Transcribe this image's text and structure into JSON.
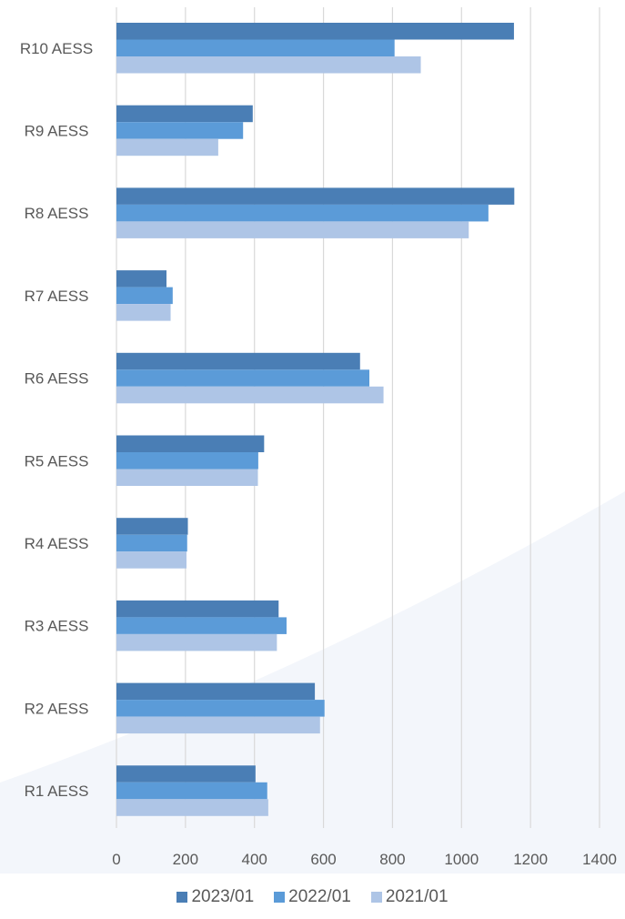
{
  "chart_data": {
    "type": "bar",
    "orientation": "horizontal",
    "categories": [
      "R1 AESS",
      "R2 AESS",
      "R3 AESS",
      "R4 AESS",
      "R5 AESS",
      "R6 AESS",
      "R7 AESS",
      "R8 AESS",
      "R9 AESS",
      "R10 AESS"
    ],
    "series": [
      {
        "name": "2023/01",
        "color": "#4a7eb5",
        "values": [
          403,
          575,
          470,
          207,
          428,
          706,
          145,
          1153,
          395,
          1152
        ]
      },
      {
        "name": "2022/01",
        "color": "#5b9bd8",
        "values": [
          437,
          603,
          493,
          205,
          411,
          733,
          163,
          1078,
          367,
          806
        ]
      },
      {
        "name": "2021/01",
        "color": "#aec5e6",
        "values": [
          440,
          590,
          465,
          203,
          410,
          774,
          157,
          1021,
          295,
          882
        ]
      }
    ],
    "xlim": [
      0,
      1400
    ],
    "ticks": [
      0,
      200,
      400,
      600,
      800,
      1000,
      1200,
      1400
    ],
    "grid": true,
    "legend_position": "bottom",
    "title": "",
    "xlabel": "",
    "ylabel": ""
  }
}
